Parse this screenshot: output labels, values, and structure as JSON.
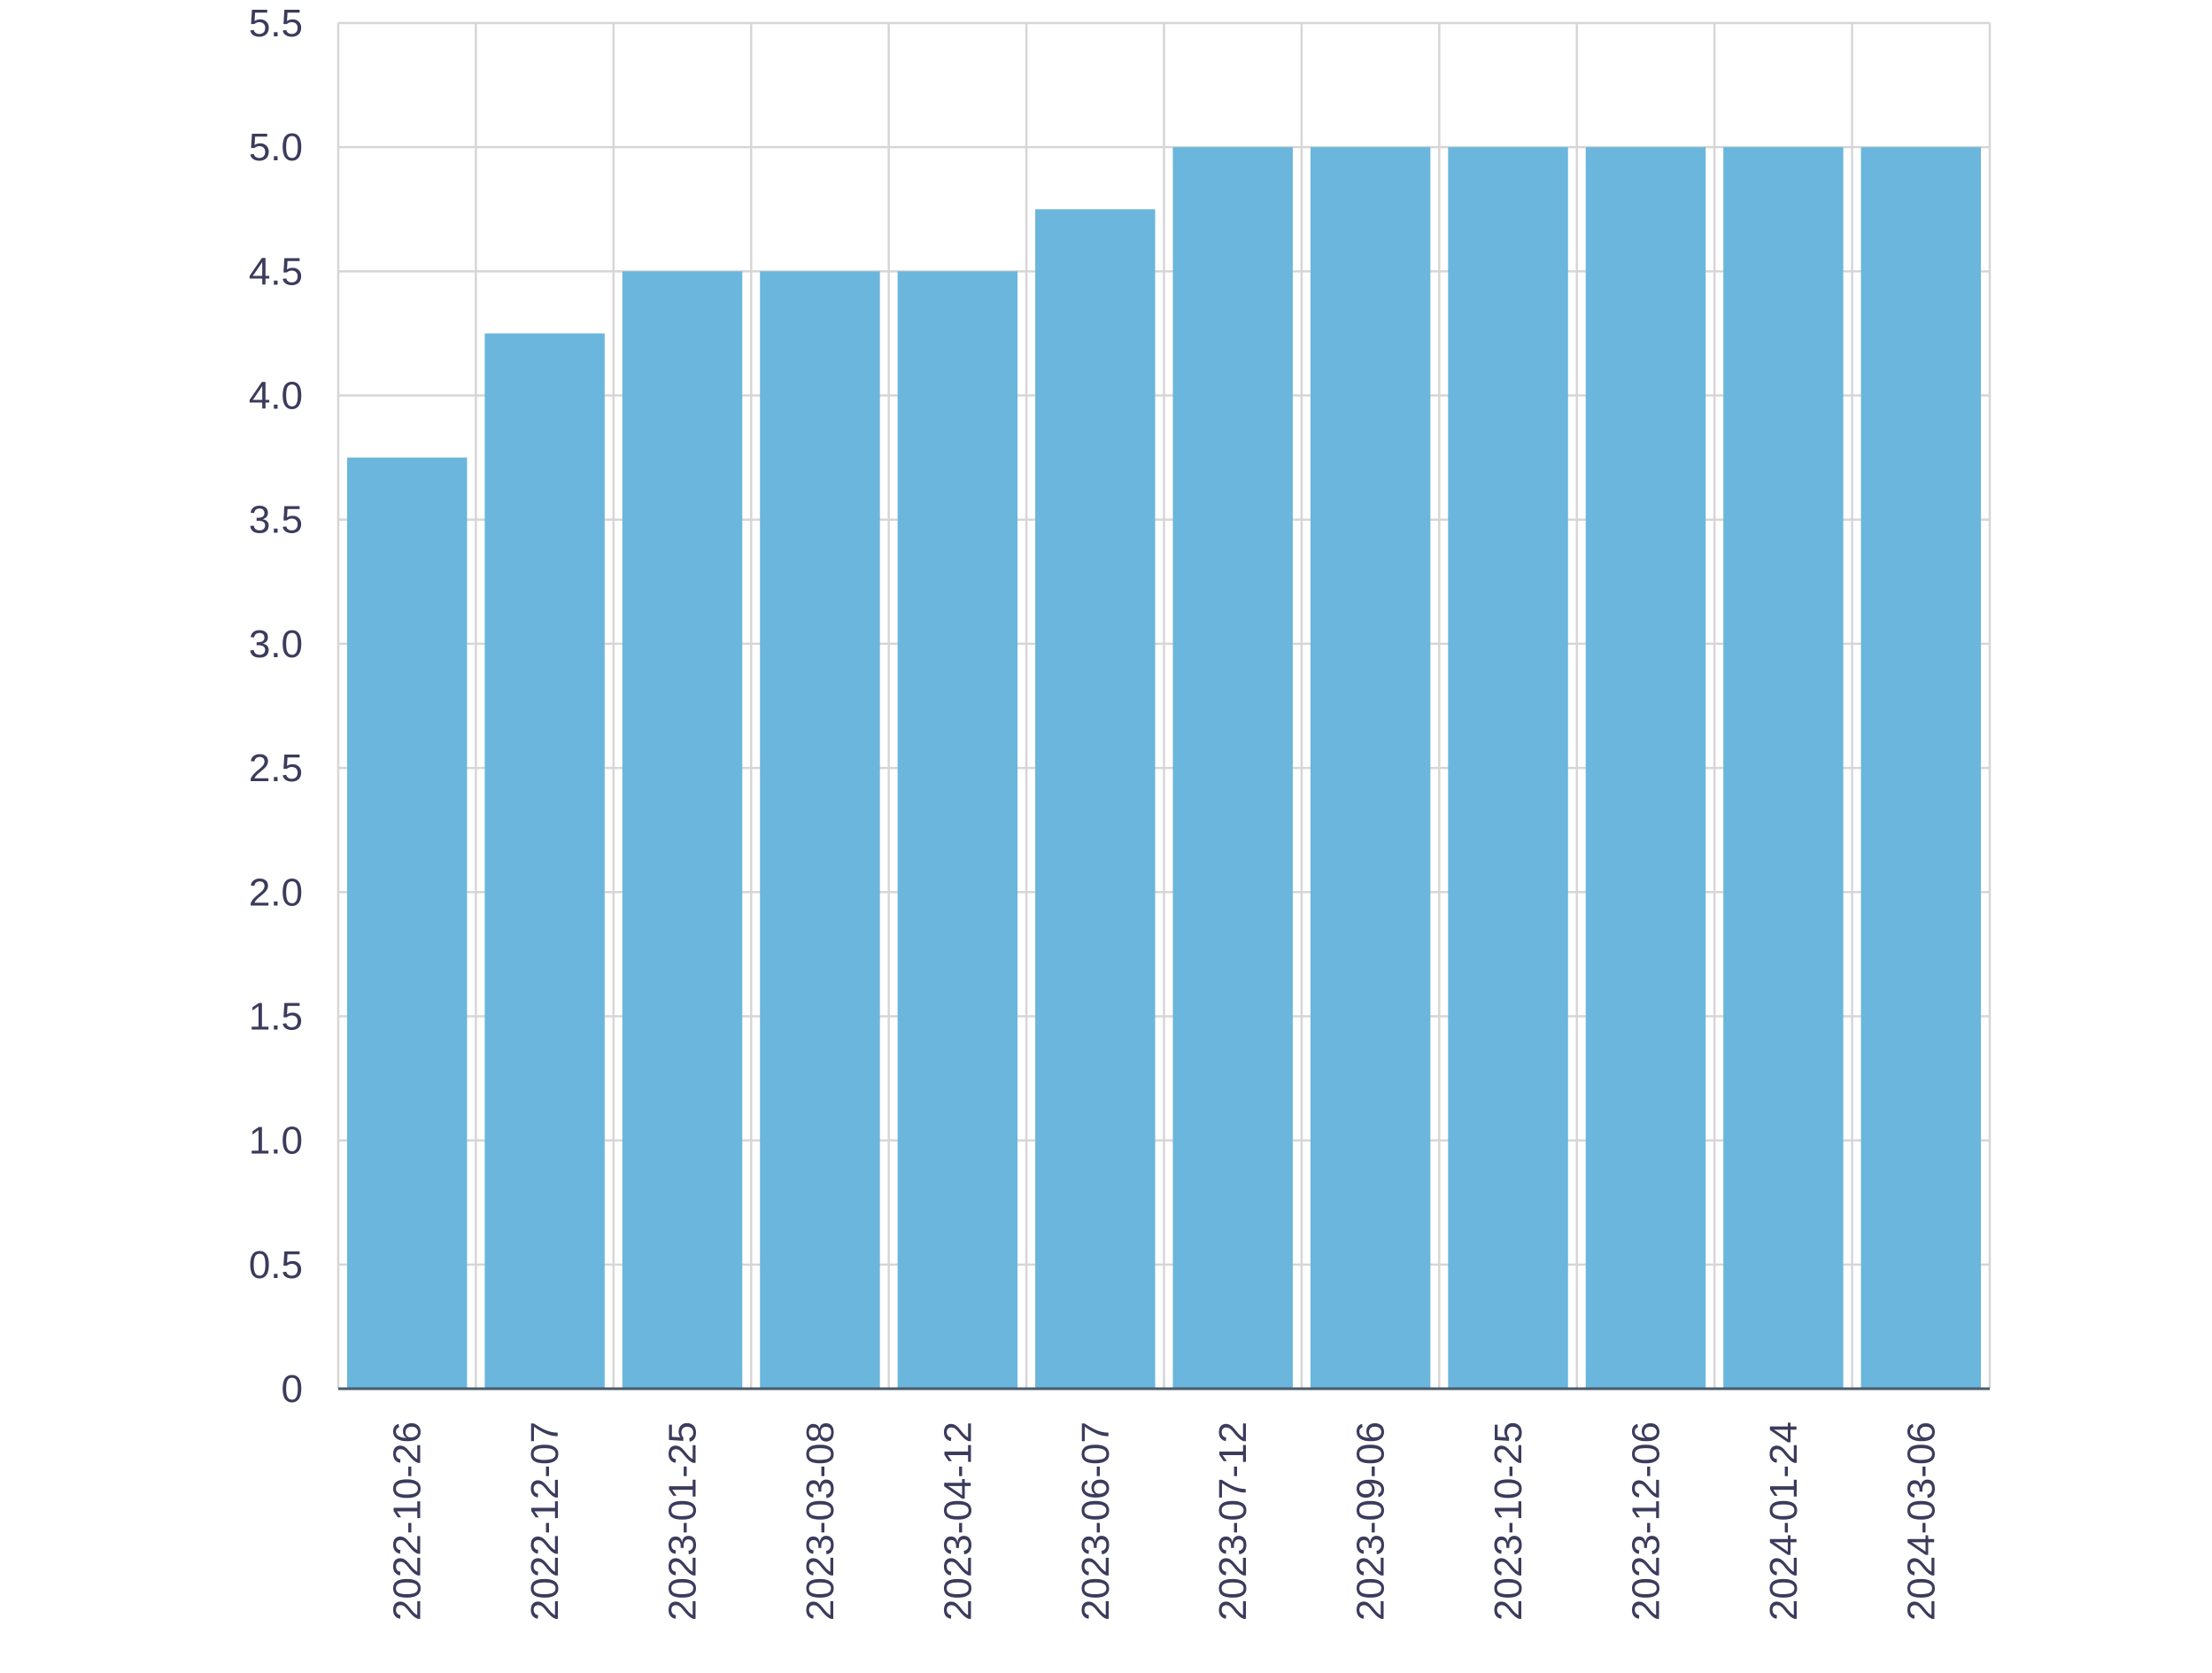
{
  "chart_data": {
    "type": "bar",
    "categories": [
      "2022-10-26",
      "2022-12-07",
      "2023-01-25",
      "2023-03-08",
      "2023-04-12",
      "2023-06-07",
      "2023-07-12",
      "2023-09-06",
      "2023-10-25",
      "2023-12-06",
      "2024-01-24",
      "2024-03-06"
    ],
    "values": [
      3.75,
      4.25,
      4.5,
      4.5,
      4.5,
      4.75,
      5.0,
      5.0,
      5.0,
      5.0,
      5.0,
      5.0
    ],
    "y_ticks": [
      "0",
      "0.5",
      "1.0",
      "1.5",
      "2.0",
      "2.5",
      "3.0",
      "3.5",
      "4.0",
      "4.5",
      "5.0",
      "5.5"
    ],
    "ylim": [
      0,
      5.5
    ],
    "grid": true,
    "legend": "none",
    "title": "",
    "xlabel": "",
    "ylabel": "",
    "colors": {
      "bar": "#6ab6dc",
      "grid": "#d6d6d6",
      "axis": "#4a5a6a",
      "text": "#3b3b5c"
    }
  }
}
